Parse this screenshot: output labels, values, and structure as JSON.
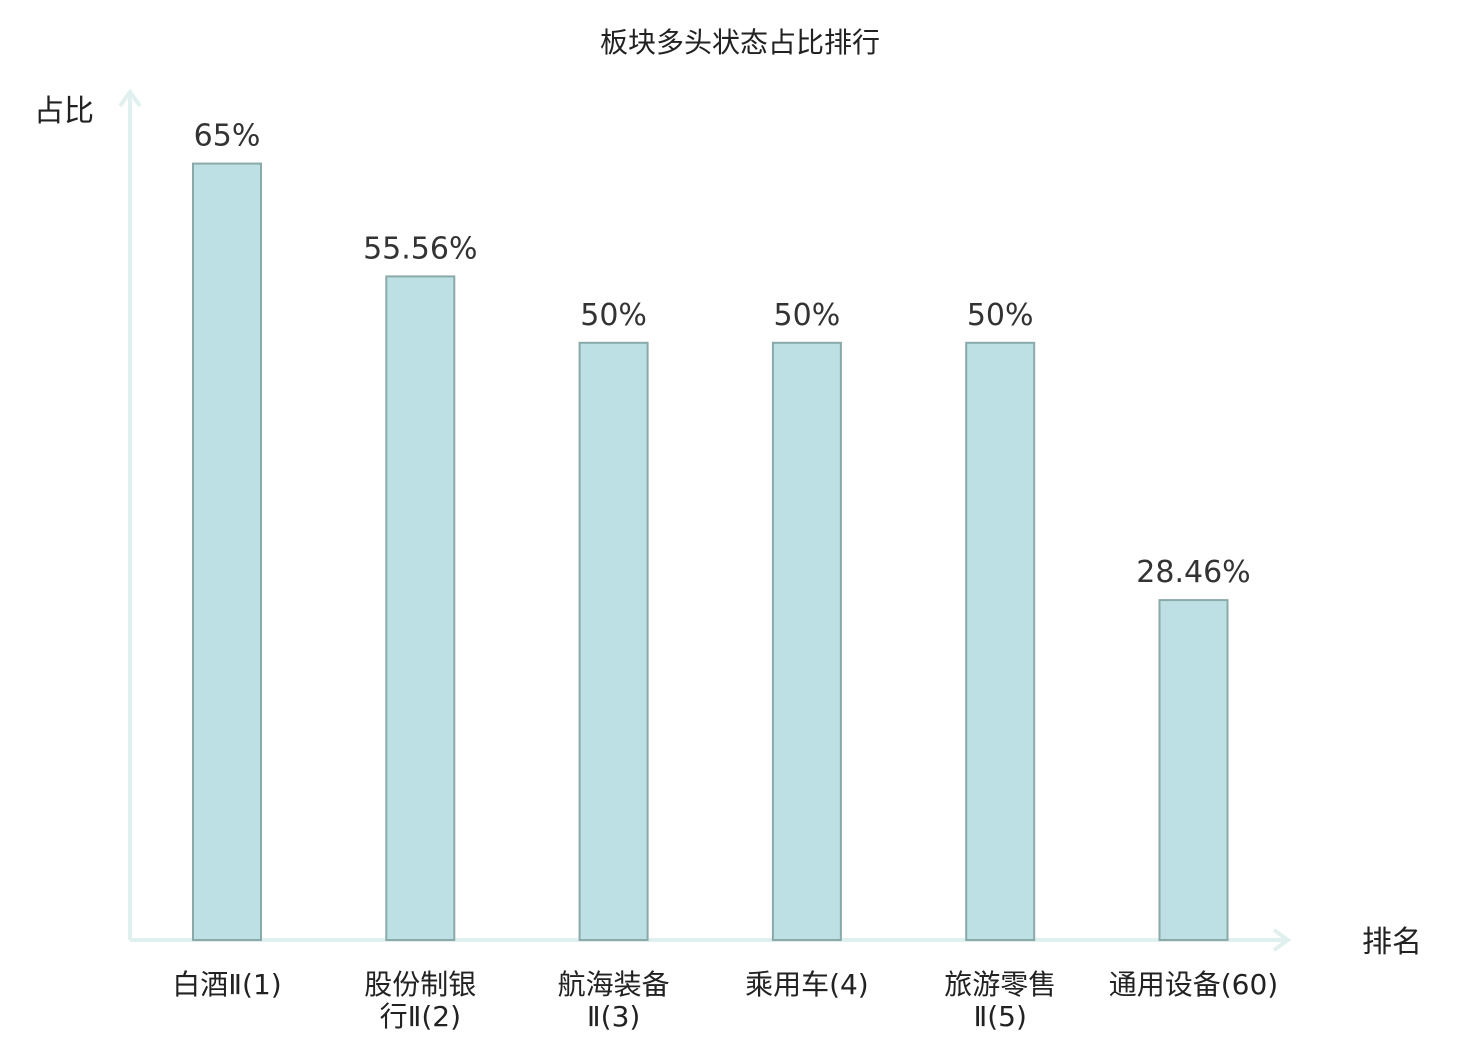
{
  "chart_data": {
    "type": "bar",
    "title": "板块多头状态占比排行",
    "ylabel": "占比",
    "xlabel": "排名",
    "ylim": [
      0,
      72
    ],
    "value_suffix": "%",
    "categories": [
      [
        "白酒Ⅱ(1)"
      ],
      [
        "股份制银",
        "行Ⅱ(2)"
      ],
      [
        "航海装备",
        "Ⅱ(3)"
      ],
      [
        "乘用车(4)"
      ],
      [
        "旅游零售",
        "Ⅱ(5)"
      ],
      [
        "通用设备(60)"
      ]
    ],
    "values": [
      65,
      55.56,
      50,
      50,
      50,
      28.46
    ],
    "value_labels": [
      "65%",
      "55.56%",
      "50%",
      "50%",
      "50%",
      "28.46%"
    ],
    "highlight_index": 5,
    "grid": false,
    "colors": {
      "bar_fill": "#bce0e3",
      "bar_stroke": "#8aaaaa",
      "axis": "#dff0ee",
      "highlight_label": "#dd1111",
      "text": "#222222"
    }
  }
}
